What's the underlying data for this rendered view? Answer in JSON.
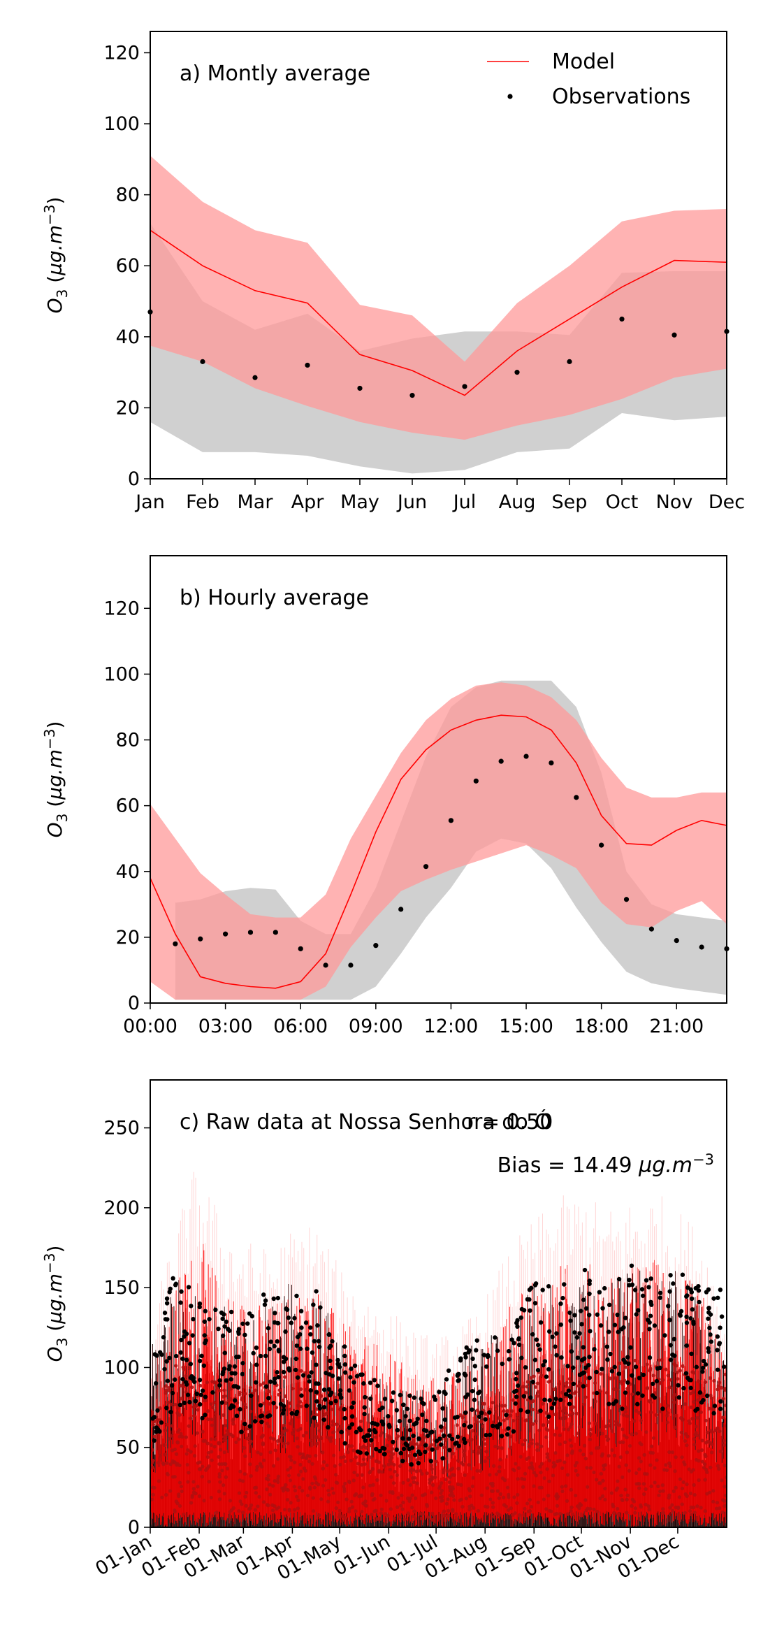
{
  "colors": {
    "model": "#ff0000",
    "model_band": "#ff9999",
    "obs": "#000000",
    "obs_band": "#c8c8c8"
  },
  "chart_data": [
    {
      "type": "line",
      "panel_label": "a) Montly average",
      "ylabel": "O3 (µg.m-3)",
      "ylim": [
        0,
        126
      ],
      "yticks": [
        0,
        20,
        40,
        60,
        80,
        100,
        120
      ],
      "xlim": [
        0,
        11
      ],
      "x_tick_labels": [
        "Jan",
        "Feb",
        "Mar",
        "Apr",
        "May",
        "Jun",
        "Jul",
        "Aug",
        "Sep",
        "Oct",
        "Nov",
        "Dec"
      ],
      "x": [
        0,
        1,
        2,
        3,
        4,
        5,
        6,
        7,
        8,
        9,
        10,
        11
      ],
      "legend": {
        "placement": "top-right",
        "entries": [
          "Model",
          "Observations"
        ]
      },
      "series": [
        {
          "name": "Model",
          "kind": "line",
          "values": [
            70,
            60,
            53,
            49.5,
            35,
            30.5,
            23.5,
            36,
            45,
            54,
            61.5,
            61
          ]
        },
        {
          "name": "Observations",
          "kind": "points",
          "values": [
            47,
            33,
            28.5,
            32,
            25.5,
            23.5,
            26,
            30,
            33,
            45,
            40.5,
            41.5
          ]
        }
      ],
      "bands": [
        {
          "of": "Observations",
          "lower": [
            16,
            7.5,
            7.5,
            6.5,
            3.5,
            1.5,
            2.5,
            7.5,
            8.5,
            18.5,
            16.5,
            17.5
          ],
          "upper": [
            72,
            50,
            42,
            46.5,
            36,
            39.5,
            41.5,
            41.5,
            40.5,
            58,
            58.5,
            58.5
          ]
        },
        {
          "of": "Model",
          "lower": [
            37.5,
            33,
            25.5,
            20.5,
            16,
            13,
            11,
            15,
            18,
            22.5,
            28.5,
            31
          ],
          "upper": [
            91,
            78,
            70,
            66.5,
            49,
            46,
            33,
            49.5,
            60,
            72.5,
            75.5,
            76
          ]
        }
      ]
    },
    {
      "type": "line",
      "panel_label": "b) Hourly average",
      "ylabel": "O3 (µg.m-3)",
      "ylim": [
        0,
        136
      ],
      "yticks": [
        0,
        20,
        40,
        60,
        80,
        100,
        120
      ],
      "xlim": [
        0,
        23
      ],
      "x_ticks": [
        0,
        3,
        6,
        9,
        12,
        15,
        18,
        21
      ],
      "x_tick_labels": [
        "00:00",
        "03:00",
        "06:00",
        "09:00",
        "12:00",
        "15:00",
        "18:00",
        "21:00"
      ],
      "x": [
        0,
        1,
        2,
        3,
        4,
        5,
        6,
        7,
        8,
        9,
        10,
        11,
        12,
        13,
        14,
        15,
        16,
        17,
        18,
        19,
        20,
        21,
        22,
        23
      ],
      "series": [
        {
          "name": "Model",
          "kind": "line",
          "values": [
            38,
            21,
            8,
            6,
            5,
            4.5,
            6.5,
            15,
            33,
            52,
            68,
            77,
            83,
            86,
            87.5,
            87,
            83,
            73,
            57,
            48.5,
            48,
            52.5,
            55.5,
            54
          ]
        },
        {
          "name": "Observations",
          "kind": "points",
          "values": [
            null,
            18,
            19.5,
            21,
            21.5,
            21.5,
            16.5,
            11.5,
            11.5,
            17.5,
            28.5,
            41.5,
            55.5,
            67.5,
            73.5,
            75,
            73,
            62.5,
            48,
            31.5,
            22.5,
            19,
            17,
            16.5
          ]
        }
      ],
      "bands": [
        {
          "of": "Observations",
          "lower": [
            null,
            1,
            1,
            1,
            1,
            1,
            1,
            1,
            1,
            5,
            15,
            26,
            35,
            46,
            50,
            48.5,
            41,
            29,
            18.5,
            9.5,
            6,
            4.5,
            3.5,
            2.5
          ],
          "upper": [
            null,
            30.5,
            31.5,
            34,
            35,
            34.5,
            25,
            21,
            21,
            35,
            55,
            75,
            90,
            96,
            98,
            98,
            98,
            90,
            70,
            40,
            30,
            27,
            26,
            25
          ]
        },
        {
          "of": "Model",
          "lower": [
            6.5,
            1,
            1,
            1,
            1,
            1,
            1,
            5,
            17,
            26,
            34,
            37.5,
            40.5,
            43,
            45.5,
            48,
            45,
            41,
            30.5,
            24,
            23,
            28,
            31,
            24
          ]
        },
        {
          "of": "Model_upper",
          "upper": [
            60.5,
            50,
            39.5,
            33,
            27,
            26,
            26,
            33,
            50,
            63,
            76,
            86,
            92.5,
            96.5,
            97.5,
            96.5,
            93,
            86,
            74.5,
            65.5,
            62.5,
            62.5,
            64,
            64
          ]
        }
      ]
    },
    {
      "type": "line",
      "panel_label": "c) Raw data at Nossa Senhora do Ó",
      "stat_r": "r = 0.50",
      "stat_bias_prefix": "Bias = 14.49 ",
      "stat_bias_unit": "µg.m",
      "stat_bias_exp": "−3",
      "ylabel": "O3 (µg.m-3)",
      "ylim": [
        0,
        280
      ],
      "yticks": [
        0,
        50,
        100,
        150,
        200,
        250
      ],
      "xlim": [
        0,
        365
      ],
      "x_ticks": [
        0,
        31,
        59,
        90,
        120,
        151,
        181,
        212,
        243,
        273,
        304,
        334
      ],
      "x_tick_labels": [
        "01-Jan",
        "01-Feb",
        "01-Mar",
        "01-Apr",
        "01-May",
        "01-Jun",
        "01-Jul",
        "01-Aug",
        "01-Sep",
        "01-Oct",
        "01-Nov",
        "01-Dec"
      ],
      "x": [
        0,
        15,
        30,
        45,
        59,
        75,
        90,
        105,
        120,
        135,
        151,
        166,
        181,
        196,
        212,
        227,
        243,
        258,
        273,
        288,
        304,
        319,
        334,
        349,
        365
      ],
      "series": [
        {
          "name": "Model",
          "kind": "hourly-raw",
          "envelope_upper": [
            100,
            150,
            185,
            155,
            145,
            140,
            150,
            155,
            130,
            120,
            110,
            100,
            95,
            100,
            115,
            140,
            155,
            165,
            170,
            160,
            165,
            170,
            160,
            150,
            110
          ]
        },
        {
          "name": "Observations",
          "kind": "hourly-raw",
          "envelope_upper": [
            110,
            160,
            150,
            140,
            130,
            150,
            155,
            150,
            120,
            100,
            90,
            85,
            90,
            110,
            125,
            120,
            160,
            150,
            165,
            150,
            165,
            160,
            165,
            150,
            150
          ]
        }
      ]
    }
  ]
}
